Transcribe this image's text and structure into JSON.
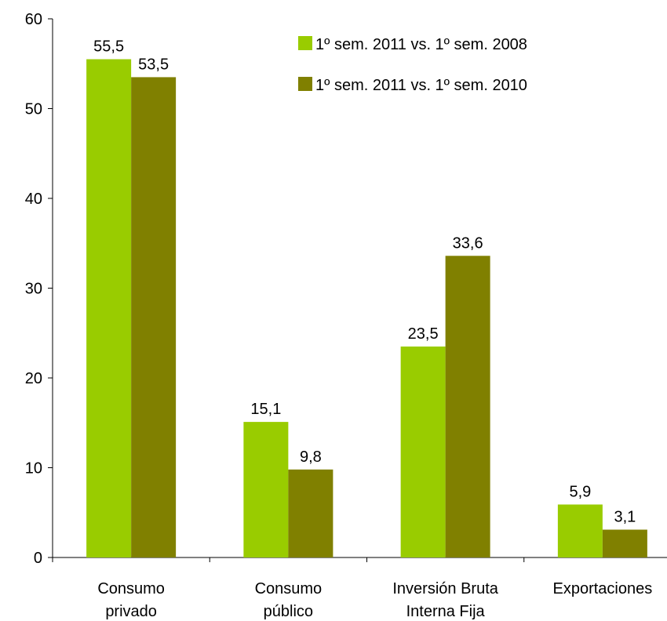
{
  "chart_data": {
    "type": "bar",
    "categories": [
      [
        "Consumo",
        "privado"
      ],
      [
        "Consumo",
        "público"
      ],
      [
        "Inversión Bruta",
        "Interna Fija"
      ],
      [
        "Exportaciones"
      ]
    ],
    "series": [
      {
        "name": "1º sem. 2011 vs. 1º sem. 2008",
        "values": [
          55.5,
          15.1,
          23.5,
          5.9
        ],
        "labels": [
          "55,5",
          "15,1",
          "23,5",
          "5,9"
        ],
        "color": "#99cc00"
      },
      {
        "name": "1º sem. 2011 vs. 1º sem. 2010",
        "values": [
          53.5,
          9.8,
          33.6,
          3.1
        ],
        "labels": [
          "53,5",
          "9,8",
          "33,6",
          "3,1"
        ],
        "color": "#808000"
      }
    ],
    "ylim": [
      0,
      60
    ],
    "yticks": [
      0,
      10,
      20,
      30,
      40,
      50,
      60
    ],
    "grid": false,
    "legend_position": "top-right",
    "title": "",
    "xlabel": "",
    "ylabel": ""
  }
}
